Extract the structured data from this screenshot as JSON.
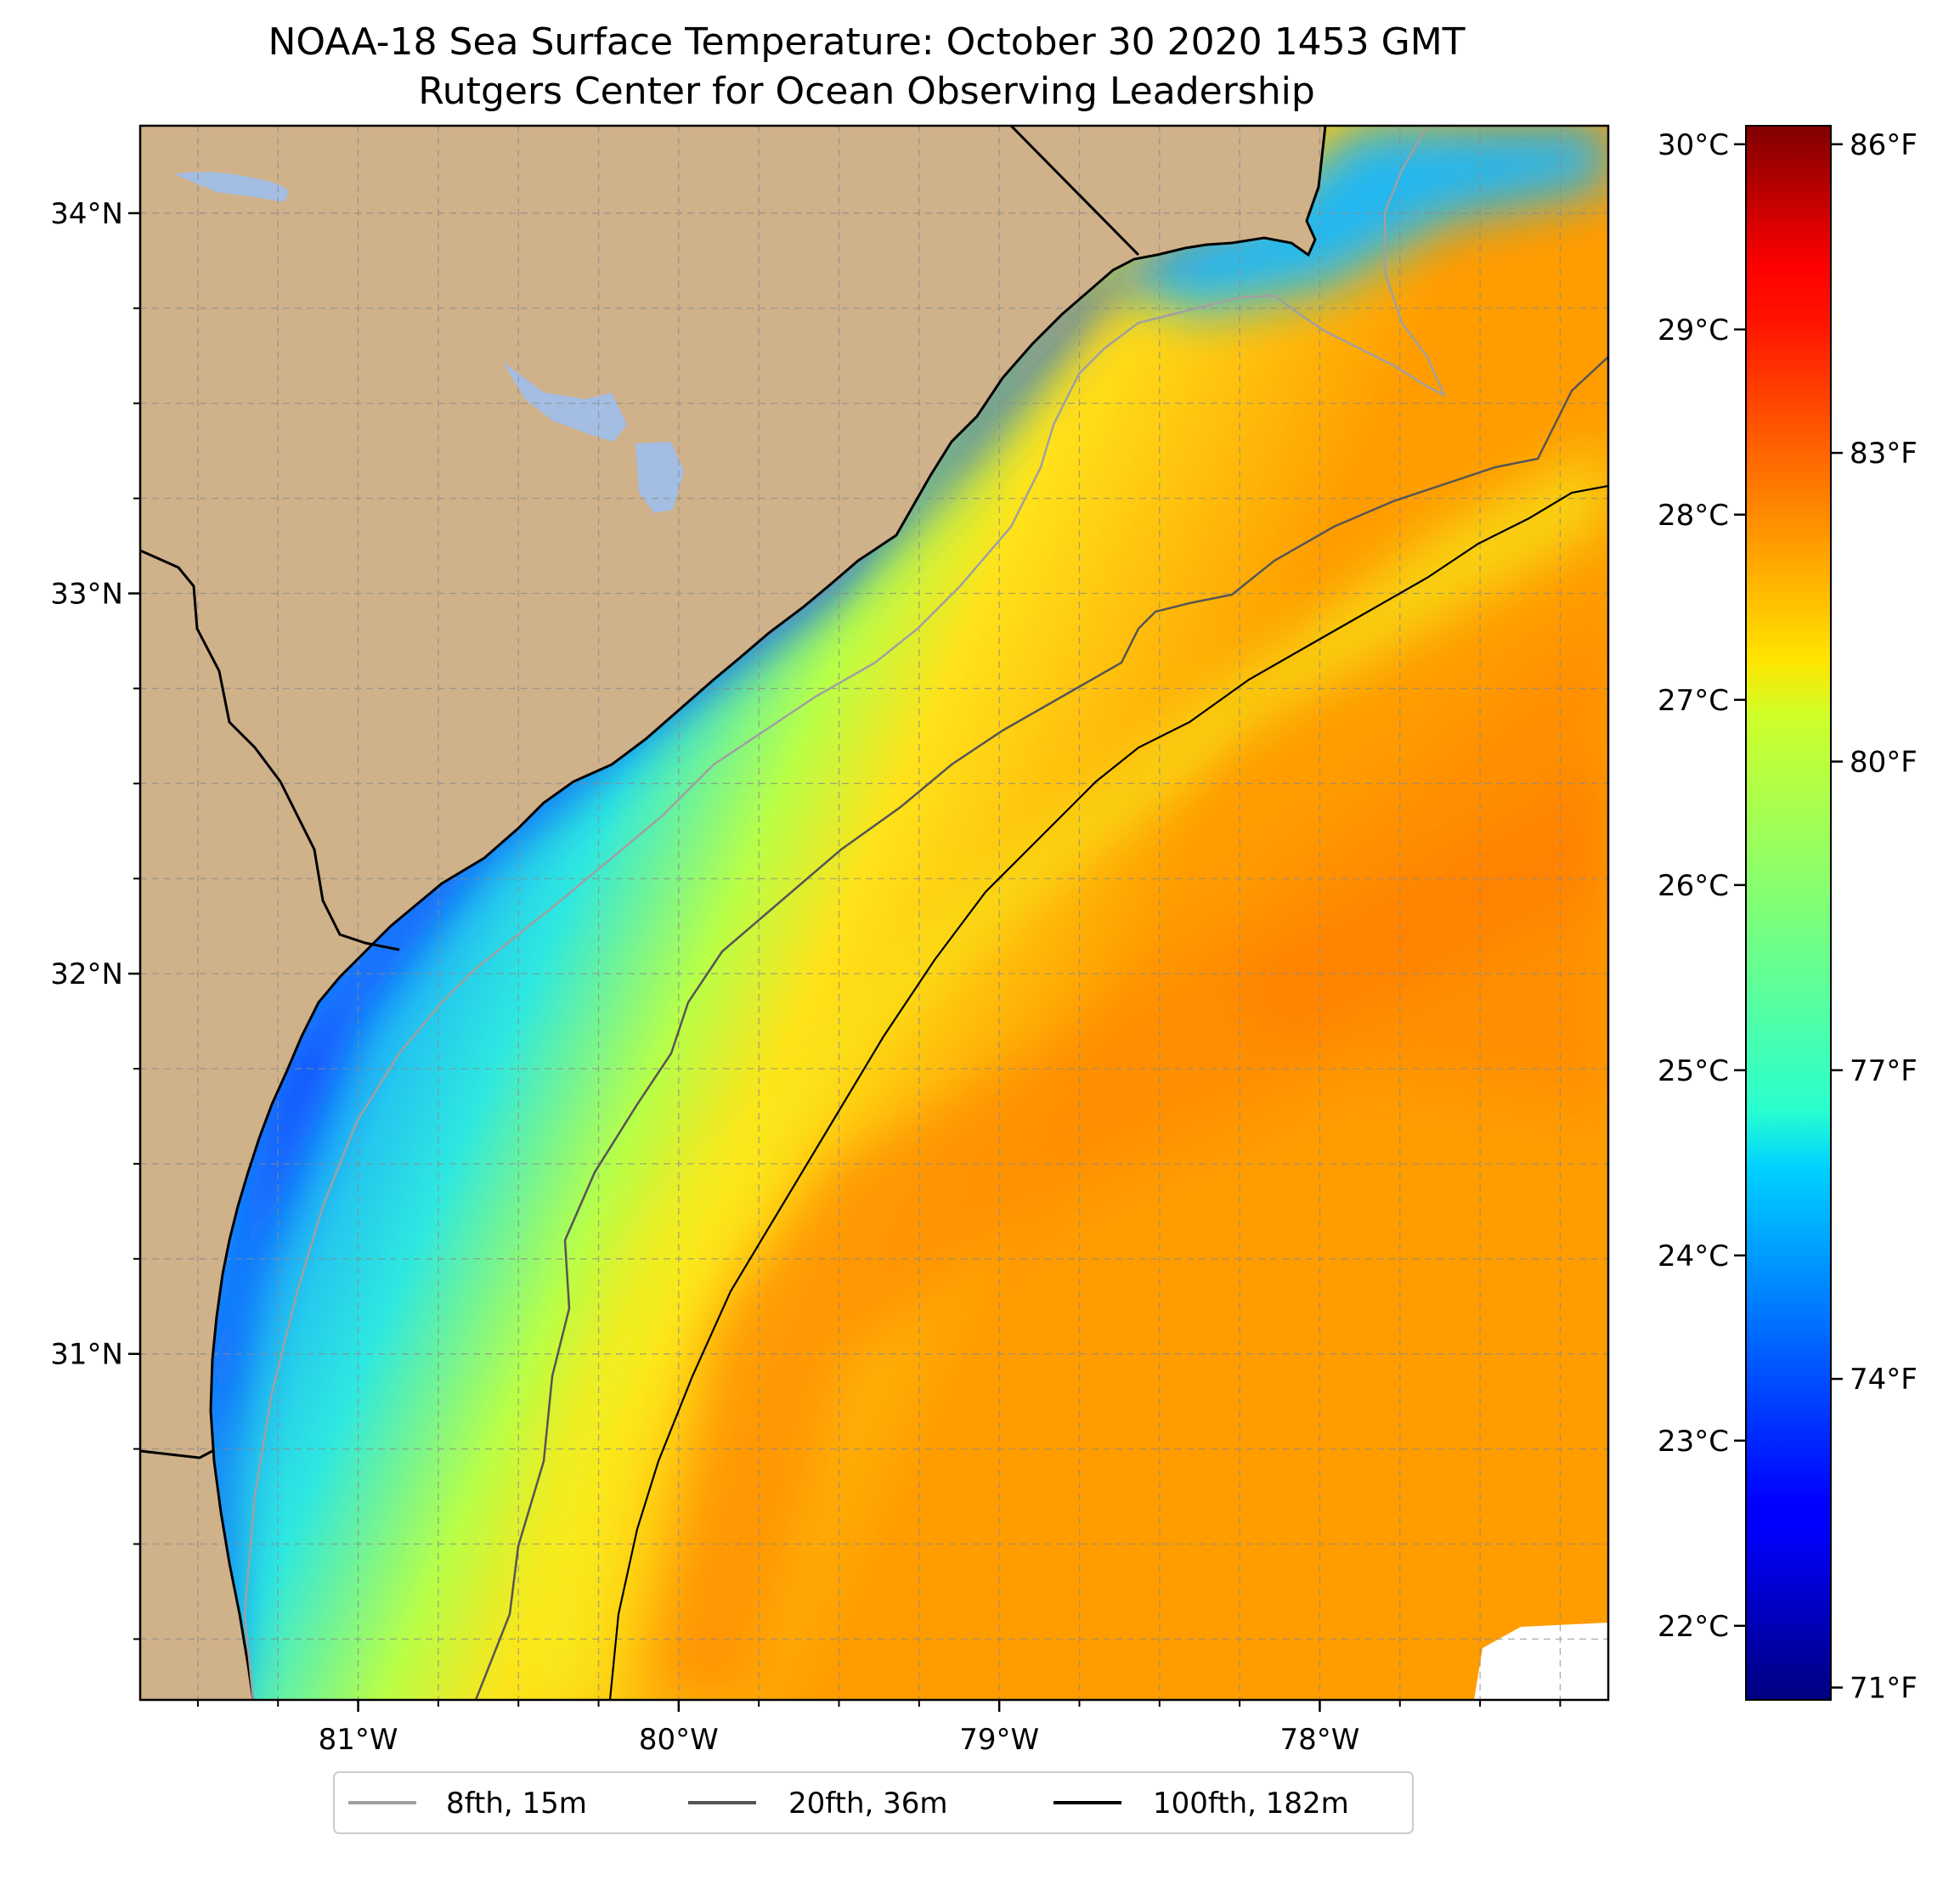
{
  "title": {
    "line1": "NOAA-18 Sea Surface Temperature: October 30 2020 1453 GMT",
    "line2": "Rutgers Center for Ocean Observing Leadership"
  },
  "map": {
    "extent_lon": [
      -81.68,
      -77.1
    ],
    "extent_lat": [
      30.09,
      34.23
    ],
    "lon_ticks": [
      {
        "value": -81,
        "label": "81°W"
      },
      {
        "value": -80,
        "label": "80°W"
      },
      {
        "value": -79,
        "label": "79°W"
      },
      {
        "value": -78,
        "label": "78°W"
      }
    ],
    "lat_ticks": [
      {
        "value": 31,
        "label": "31°N"
      },
      {
        "value": 32,
        "label": "32°N"
      },
      {
        "value": 33,
        "label": "33°N"
      },
      {
        "value": 34,
        "label": "34°N"
      }
    ],
    "gridlines": "dashed gray every 0.25°",
    "colors": {
      "land": "#cfb18a",
      "inland_water": "#a3bde3",
      "coastline": "#000000",
      "no_data": "#ffffff"
    }
  },
  "colorbar": {
    "colormap": "jet",
    "celsius_ticks": [
      {
        "value": 22,
        "label": "22°C"
      },
      {
        "value": 23,
        "label": "23°C"
      },
      {
        "value": 24,
        "label": "24°C"
      },
      {
        "value": 25,
        "label": "25°C"
      },
      {
        "value": 26,
        "label": "26°C"
      },
      {
        "value": 27,
        "label": "27°C"
      },
      {
        "value": 28,
        "label": "28°C"
      },
      {
        "value": 29,
        "label": "29°C"
      },
      {
        "value": 30,
        "label": "30°C"
      }
    ],
    "fahrenheit_ticks": [
      {
        "value": 71,
        "label": "71°F"
      },
      {
        "value": 74,
        "label": "74°F"
      },
      {
        "value": 77,
        "label": "77°F"
      },
      {
        "value": 80,
        "label": "80°F"
      },
      {
        "value": 83,
        "label": "83°F"
      },
      {
        "value": 86,
        "label": "86°F"
      }
    ],
    "range_c": [
      21.6,
      30.1
    ]
  },
  "legend": {
    "placement": "bottom-center",
    "items": [
      {
        "label": "8fth, 15m",
        "color": "#a0a0a0"
      },
      {
        "label": "20fth, 36m",
        "color": "#555555"
      },
      {
        "label": "100fth, 182m",
        "color": "#000000"
      }
    ]
  }
}
